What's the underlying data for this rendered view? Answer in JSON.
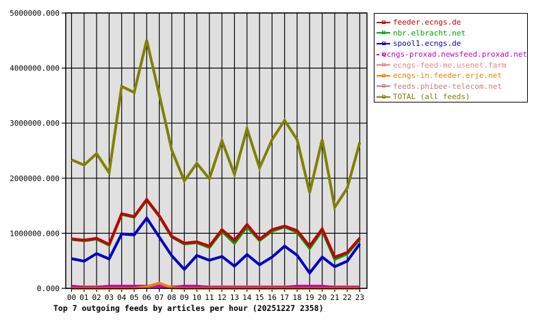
{
  "chart_data": {
    "type": "line",
    "title": "Top 7 outgoing feeds by articles per hour (20251227 2358)",
    "xlabel": "",
    "ylabel": "",
    "ylim": [
      0,
      5000000
    ],
    "yticks": [
      "0.000",
      "1000000.000",
      "2000000.000",
      "3000000.000",
      "4000000.000",
      "5000000.000"
    ],
    "grid": true,
    "legend_position": "right",
    "x": [
      "00",
      "01",
      "02",
      "03",
      "04",
      "05",
      "06",
      "07",
      "08",
      "09",
      "10",
      "11",
      "12",
      "13",
      "14",
      "15",
      "16",
      "17",
      "18",
      "19",
      "20",
      "21",
      "22",
      "23"
    ],
    "series": [
      {
        "name": "feeder.ecngs.de",
        "color": "#c00000",
        "values": [
          900000,
          875000,
          910000,
          800000,
          1355000,
          1305000,
          1615000,
          1320000,
          945000,
          820000,
          845000,
          767000,
          1066000,
          870000,
          1160000,
          890000,
          1066000,
          1130000,
          1050000,
          767000,
          1080000,
          568000,
          652000,
          913000
        ]
      },
      {
        "name": "nbr.elbracht.net",
        "color": "#00a000",
        "values": [
          888000,
          863000,
          896000,
          784000,
          1343000,
          1293000,
          1604000,
          1306000,
          933000,
          808000,
          830000,
          742000,
          1037000,
          817000,
          1120000,
          870000,
          1040000,
          1115000,
          1020000,
          726000,
          1050000,
          527000,
          627000,
          892000
        ]
      },
      {
        "name": "spool1.ecngs.de",
        "color": "#0000c0",
        "values": [
          540000,
          494000,
          631000,
          535000,
          987000,
          970000,
          1277000,
          933000,
          593000,
          345000,
          597000,
          510000,
          580000,
          403000,
          614000,
          428000,
          568000,
          767000,
          602000,
          279000,
          568000,
          394000,
          494000,
          808000
        ]
      },
      {
        "name": "ecngs-proxad.newsfeed.proxad.net",
        "color": "#c000c0",
        "values": [
          40000,
          20000,
          20000,
          40000,
          40000,
          40000,
          40000,
          40000,
          20000,
          40000,
          40000,
          20000,
          20000,
          20000,
          20000,
          20000,
          20000,
          20000,
          40000,
          40000,
          40000,
          20000,
          20000,
          20000
        ]
      },
      {
        "name": "ecngs-feed-me.usenet.farm",
        "color": "#f08080",
        "values": [
          30000,
          30000,
          30000,
          30000,
          30000,
          30000,
          30000,
          30000,
          30000,
          30000,
          30000,
          30000,
          30000,
          30000,
          30000,
          30000,
          30000,
          30000,
          30000,
          30000,
          30000,
          30000,
          30000,
          30000
        ]
      },
      {
        "name": "ecngs-in.feeder.erje.net",
        "color": "#f08000",
        "values": [
          0,
          0,
          0,
          0,
          0,
          0,
          30000,
          95000,
          10000,
          0,
          0,
          0,
          0,
          0,
          0,
          0,
          0,
          0,
          0,
          0,
          0,
          0,
          0,
          0
        ]
      },
      {
        "name": "feeds.phibee-telecom.net",
        "color": "#c08080",
        "values": [
          25000,
          25000,
          25000,
          25000,
          25000,
          25000,
          25000,
          25000,
          25000,
          25000,
          25000,
          25000,
          25000,
          25000,
          25000,
          25000,
          25000,
          25000,
          25000,
          25000,
          25000,
          25000,
          25000,
          25000
        ]
      },
      {
        "name": "TOTAL (all feeds)",
        "color": "#808000",
        "values": [
          2335000,
          2240000,
          2447000,
          2100000,
          3668000,
          3557000,
          4505000,
          3520000,
          2510000,
          1950000,
          2270000,
          1990000,
          2680000,
          2070000,
          2900000,
          2190000,
          2700000,
          3050000,
          2700000,
          1740000,
          2700000,
          1470000,
          1820000,
          2650000
        ]
      }
    ]
  },
  "legend": {
    "items": [
      {
        "label": "feeder.ecngs.de",
        "color": "#c00000"
      },
      {
        "label": "nbr.elbracht.net",
        "color": "#00a000"
      },
      {
        "label": "spool1.ecngs.de",
        "color": "#0000c0"
      },
      {
        "label": "ecngs-proxad.newsfeed.proxad.net",
        "color": "#c000c0"
      },
      {
        "label": "ecngs-feed-me.usenet.farm",
        "color": "#f08080"
      },
      {
        "label": "ecngs-in.feeder.erje.net",
        "color": "#f08000"
      },
      {
        "label": "feeds.phibee-telecom.net",
        "color": "#c08080"
      },
      {
        "label": "TOTAL (all feeds)",
        "color": "#808000"
      }
    ]
  },
  "colors": {
    "plot_background": "#e0e0e0",
    "grid": "#000000",
    "axis_text": "#000000"
  }
}
